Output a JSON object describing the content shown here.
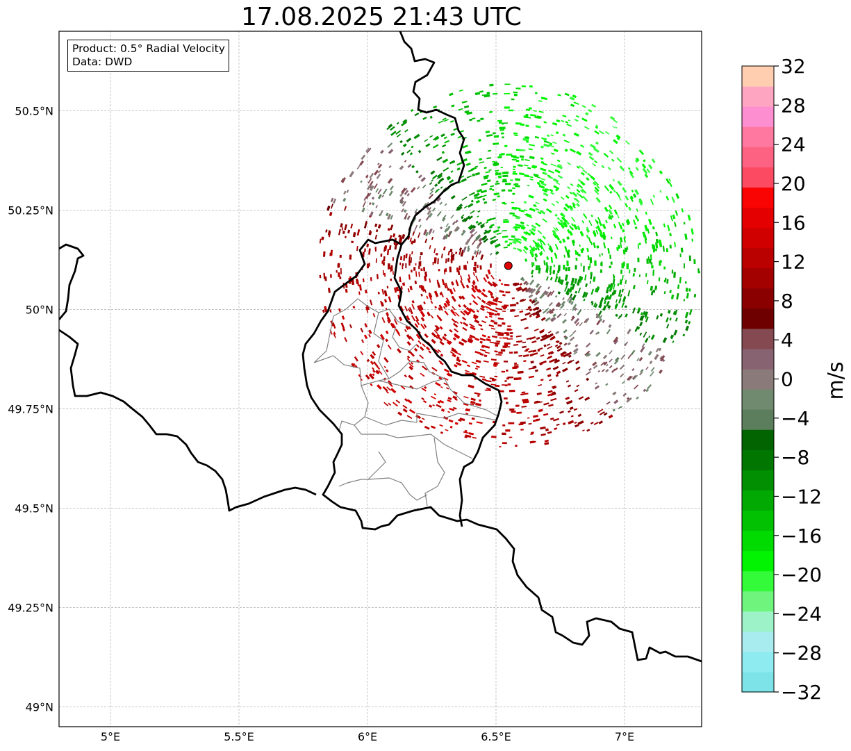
{
  "title": "17.08.2025 21:43 UTC",
  "info": {
    "product": "Product: 0.5° Radial Velocity",
    "data": "Data: DWD"
  },
  "map": {
    "lon_range": [
      4.8,
      7.3
    ],
    "lat_range": [
      48.95,
      50.7
    ],
    "lon_ticks": [
      {
        "v": 5.0,
        "label": "5°E"
      },
      {
        "v": 5.5,
        "label": "5.5°E"
      },
      {
        "v": 6.0,
        "label": "6°E"
      },
      {
        "v": 6.5,
        "label": "6.5°E"
      },
      {
        "v": 7.0,
        "label": "7°E"
      }
    ],
    "lat_ticks": [
      {
        "v": 49.0,
        "label": "49°N"
      },
      {
        "v": 49.25,
        "label": "49.25°N"
      },
      {
        "v": 49.5,
        "label": "49.5°N"
      },
      {
        "v": 49.75,
        "label": "49.75°N"
      },
      {
        "v": 50.0,
        "label": "50°N"
      },
      {
        "v": 50.25,
        "label": "50.25°N"
      },
      {
        "v": 50.5,
        "label": "50.5°N"
      }
    ],
    "radar_site": {
      "lon": 6.548,
      "lat": 50.11
    },
    "grid": true
  },
  "colorbar": {
    "label": "m/s",
    "range": [
      -32,
      32
    ],
    "tick_values": [
      -32,
      -28,
      -24,
      -20,
      -16,
      -12,
      -8,
      -4,
      0,
      4,
      8,
      12,
      16,
      20,
      24,
      28,
      32
    ],
    "tick_labels": [
      "−32",
      "−28",
      "−24",
      "−20",
      "−16",
      "−12",
      "−8",
      "−4",
      "0",
      "4",
      "8",
      "12",
      "16",
      "20",
      "24",
      "28",
      "32"
    ],
    "colors": [
      "#7de3e8",
      "#8eebef",
      "#a8ecef",
      "#9ef2c8",
      "#6ff57e",
      "#33fb3a",
      "#02f402",
      "#02db02",
      "#02c102",
      "#02a902",
      "#028f02",
      "#017601",
      "#016401",
      "#5c7e5c",
      "#6f8a6f",
      "#8b7a7a",
      "#876270",
      "#844951",
      "#6e0000",
      "#8a0000",
      "#a30000",
      "#bb0000",
      "#d10000",
      "#e40000",
      "#f90303",
      "#fd4a63",
      "#fe6283",
      "#fe78a0",
      "#fd8fd1",
      "#fea5c1",
      "#ffceb0"
    ]
  }
}
